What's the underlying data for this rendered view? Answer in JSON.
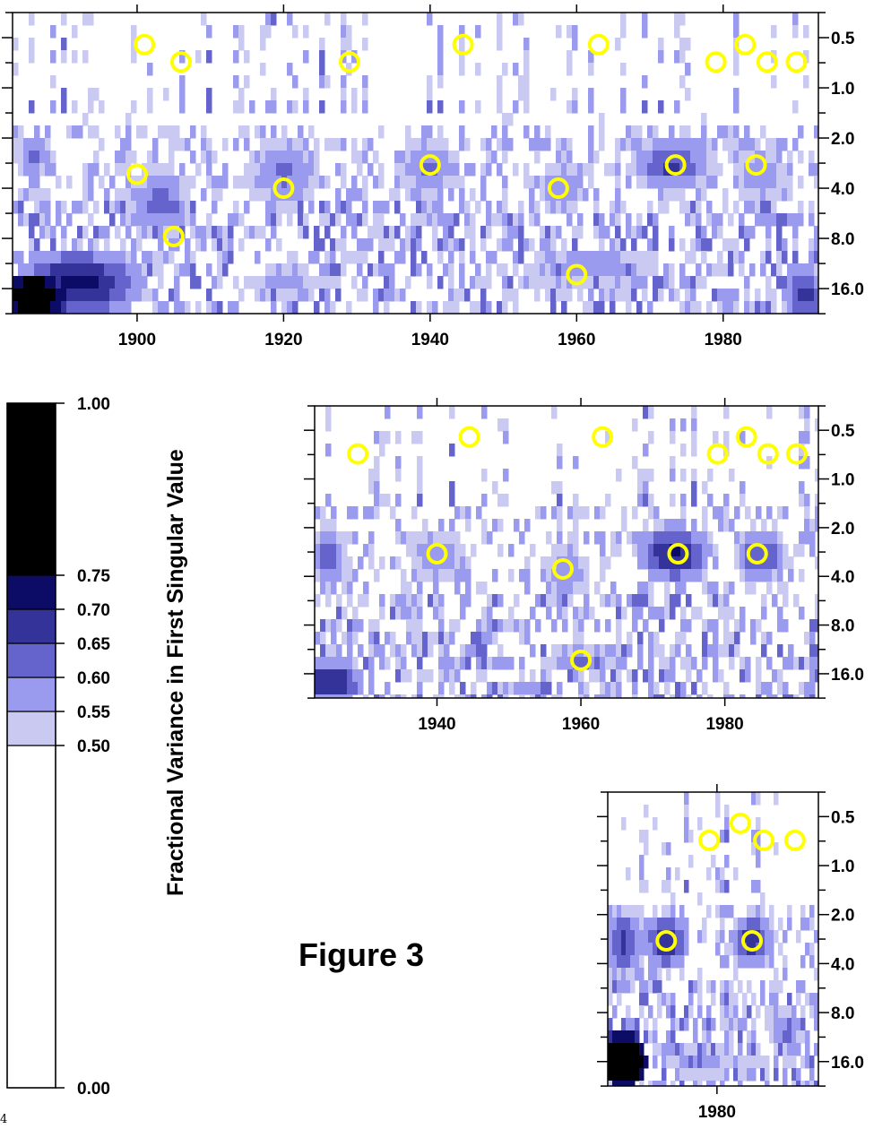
{
  "figure_label": "Figure 3",
  "colorbar": {
    "title": "Fractional Variance in First Singular Value",
    "ticks": [
      "1.00",
      "0.75",
      "0.70",
      "0.65",
      "0.60",
      "0.55",
      "0.50",
      "0.00"
    ],
    "bounds": [
      0.0,
      0.5,
      0.55,
      0.6,
      0.65,
      0.7,
      0.75,
      1.0
    ],
    "colors": [
      "#ffffff",
      "#c9c9f2",
      "#9a9aee",
      "#6464cc",
      "#33339a",
      "#0c0c66",
      "#000000"
    ]
  },
  "marker_color": "#ffff00",
  "stray_text": "4",
  "chart_data": [
    {
      "type": "heatmap",
      "id": "panel-full",
      "x_range": [
        1883,
        1993
      ],
      "x_ticks": [
        "1900",
        "1920",
        "1940",
        "1960",
        "1980"
      ],
      "y_scale": "log2",
      "y_range": [
        0.3535,
        22.6
      ],
      "y_ticks": [
        "0.5",
        "1.0",
        "2.0",
        "4.0",
        "8.0",
        "16.0"
      ],
      "markers": [
        {
          "x": 1901,
          "y": 0.55
        },
        {
          "x": 1906,
          "y": 0.7
        },
        {
          "x": 1929,
          "y": 0.7
        },
        {
          "x": 1944.5,
          "y": 0.55
        },
        {
          "x": 1963,
          "y": 0.55
        },
        {
          "x": 1979,
          "y": 0.7
        },
        {
          "x": 1983,
          "y": 0.55
        },
        {
          "x": 1986,
          "y": 0.7
        },
        {
          "x": 1990,
          "y": 0.7
        },
        {
          "x": 1900,
          "y": 3.3
        },
        {
          "x": 1920,
          "y": 4.0
        },
        {
          "x": 1940,
          "y": 2.9
        },
        {
          "x": 1957.5,
          "y": 4.0
        },
        {
          "x": 1973.5,
          "y": 2.9
        },
        {
          "x": 1984.5,
          "y": 2.9
        },
        {
          "x": 1905,
          "y": 7.8
        },
        {
          "x": 1960,
          "y": 13.2
        }
      ],
      "features": [
        {
          "x": 1886,
          "y": 18.0,
          "sx": 5,
          "sy": 0.5,
          "v": 0.85
        },
        {
          "x": 1892,
          "y": 15.0,
          "sx": 9,
          "sy": 0.7,
          "v": 0.72
        },
        {
          "x": 1886,
          "y": 2.5,
          "sx": 3,
          "sy": 0.5,
          "v": 0.62
        },
        {
          "x": 1903,
          "y": 5.0,
          "sx": 5,
          "sy": 0.9,
          "v": 0.62
        },
        {
          "x": 1920,
          "y": 3.2,
          "sx": 6,
          "sy": 0.9,
          "v": 0.61
        },
        {
          "x": 1940,
          "y": 3.0,
          "sx": 5,
          "sy": 0.7,
          "v": 0.61
        },
        {
          "x": 1958,
          "y": 4.0,
          "sx": 4,
          "sy": 0.7,
          "v": 0.6
        },
        {
          "x": 1973,
          "y": 2.9,
          "sx": 6,
          "sy": 0.6,
          "v": 0.66
        },
        {
          "x": 1985,
          "y": 3.3,
          "sx": 5,
          "sy": 0.7,
          "v": 0.6
        },
        {
          "x": 1991,
          "y": 17.0,
          "sx": 3,
          "sy": 0.6,
          "v": 0.68
        },
        {
          "x": 1962,
          "y": 12.0,
          "sx": 12,
          "sy": 0.6,
          "v": 0.59
        },
        {
          "x": 1920,
          "y": 15.0,
          "sx": 8,
          "sy": 0.5,
          "v": 0.57
        }
      ]
    },
    {
      "type": "heatmap",
      "id": "panel-middle",
      "x_range": [
        1923,
        1993
      ],
      "x_ticks": [
        "1940",
        "1960",
        "1980"
      ],
      "y_scale": "log2",
      "y_range": [
        0.3535,
        22.6
      ],
      "y_ticks": [
        "0.5",
        "1.0",
        "2.0",
        "4.0",
        "8.0",
        "16.0"
      ],
      "markers": [
        {
          "x": 1929,
          "y": 0.7
        },
        {
          "x": 1944.5,
          "y": 0.55
        },
        {
          "x": 1963,
          "y": 0.55
        },
        {
          "x": 1979,
          "y": 0.7
        },
        {
          "x": 1983,
          "y": 0.55
        },
        {
          "x": 1986,
          "y": 0.7
        },
        {
          "x": 1990,
          "y": 0.7
        },
        {
          "x": 1940,
          "y": 2.9
        },
        {
          "x": 1957.5,
          "y": 3.6
        },
        {
          "x": 1973.5,
          "y": 2.9
        },
        {
          "x": 1984.5,
          "y": 2.9
        },
        {
          "x": 1960,
          "y": 13.2
        }
      ],
      "features": [
        {
          "x": 1925,
          "y": 18.0,
          "sx": 5,
          "sy": 0.5,
          "v": 0.71
        },
        {
          "x": 1925,
          "y": 3.0,
          "sx": 3,
          "sy": 0.7,
          "v": 0.63
        },
        {
          "x": 1940,
          "y": 3.0,
          "sx": 5,
          "sy": 0.7,
          "v": 0.6
        },
        {
          "x": 1958,
          "y": 3.8,
          "sx": 4,
          "sy": 0.7,
          "v": 0.6
        },
        {
          "x": 1973,
          "y": 2.9,
          "sx": 5,
          "sy": 0.6,
          "v": 0.71
        },
        {
          "x": 1985,
          "y": 3.0,
          "sx": 4,
          "sy": 0.6,
          "v": 0.66
        },
        {
          "x": 1960,
          "y": 13.2,
          "sx": 6,
          "sy": 0.3,
          "v": 0.62
        }
      ]
    },
    {
      "type": "heatmap",
      "id": "panel-small",
      "x_range": [
        1966,
        1993
      ],
      "x_ticks": [
        "1980"
      ],
      "y_scale": "log2",
      "y_range": [
        0.3535,
        22.6
      ],
      "y_ticks": [
        "0.5",
        "1.0",
        "2.0",
        "4.0",
        "8.0",
        "16.0"
      ],
      "markers": [
        {
          "x": 1979,
          "y": 0.7
        },
        {
          "x": 1983,
          "y": 0.55
        },
        {
          "x": 1986,
          "y": 0.7
        },
        {
          "x": 1990,
          "y": 0.7
        },
        {
          "x": 1973.5,
          "y": 2.9
        },
        {
          "x": 1984.5,
          "y": 2.9
        }
      ],
      "features": [
        {
          "x": 1968,
          "y": 16.0,
          "sx": 3,
          "sy": 0.6,
          "v": 0.9
        },
        {
          "x": 1968,
          "y": 3.0,
          "sx": 3,
          "sy": 0.8,
          "v": 0.66
        },
        {
          "x": 1973.5,
          "y": 2.9,
          "sx": 3,
          "sy": 0.6,
          "v": 0.7
        },
        {
          "x": 1984.5,
          "y": 2.9,
          "sx": 3,
          "sy": 0.6,
          "v": 0.68
        },
        {
          "x": 1978,
          "y": 16.0,
          "sx": 5,
          "sy": 0.5,
          "v": 0.6
        },
        {
          "x": 1989,
          "y": 10.0,
          "sx": 3,
          "sy": 0.5,
          "v": 0.6
        }
      ]
    }
  ]
}
